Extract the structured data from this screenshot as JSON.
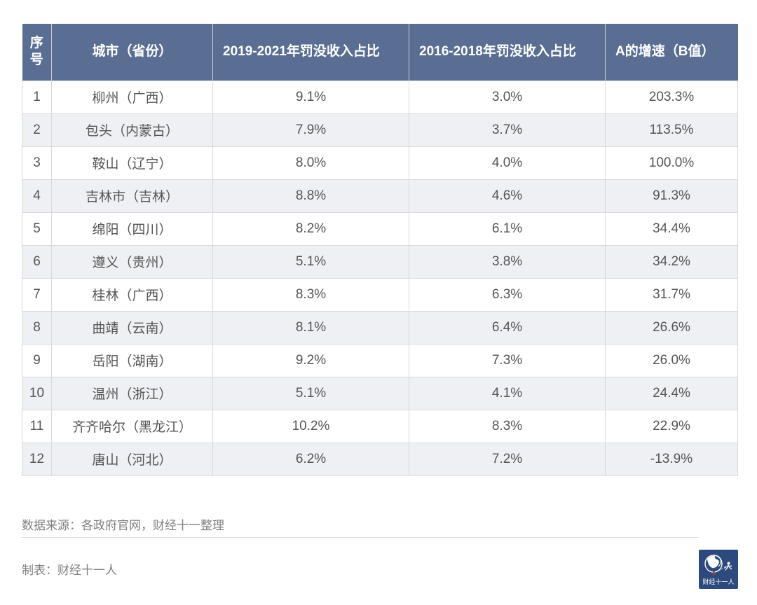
{
  "chart_data": {
    "type": "table",
    "title": "",
    "columns": [
      "序号",
      "城市（省份）",
      "2019-2021年罚没收入占比",
      "2016-2018年罚没收入占比",
      "A的增速（B值）"
    ],
    "rows": [
      [
        "1",
        "柳州（广西）",
        "9.1%",
        "3.0%",
        "203.3%"
      ],
      [
        "2",
        "包头（内蒙古）",
        "7.9%",
        "3.7%",
        "113.5%"
      ],
      [
        "3",
        "鞍山（辽宁）",
        "8.0%",
        "4.0%",
        "100.0%"
      ],
      [
        "4",
        "吉林市（吉林）",
        "8.8%",
        "4.6%",
        "91.3%"
      ],
      [
        "5",
        "绵阳（四川）",
        "8.2%",
        "6.1%",
        "34.4%"
      ],
      [
        "6",
        "遵义（贵州）",
        "5.1%",
        "3.8%",
        "34.2%"
      ],
      [
        "7",
        "桂林（广西）",
        "8.3%",
        "6.3%",
        "31.7%"
      ],
      [
        "8",
        "曲靖（云南）",
        "8.1%",
        "6.4%",
        "26.6%"
      ],
      [
        "9",
        "岳阳（湖南）",
        "9.2%",
        "7.3%",
        "26.0%"
      ],
      [
        "10",
        "温州（浙江）",
        "5.1%",
        "4.1%",
        "24.4%"
      ],
      [
        "11",
        "齐齐哈尔（黑龙江）",
        "10.2%",
        "8.3%",
        "22.9%"
      ],
      [
        "12",
        "唐山（河北）",
        "6.2%",
        "7.2%",
        "-13.9%"
      ]
    ]
  },
  "footer": {
    "source": "数据来源：各政府官网，财经十一整理",
    "credit": "制表：财经十一人",
    "logo_text": "财经十一人"
  },
  "colors": {
    "header_bg": "#5a6e94",
    "header_text": "#ffffff",
    "body_text": "#555555",
    "row_alt_bg": "#eef0f3",
    "border": "#d9d9d9",
    "footer_text": "#7f7f7f",
    "logo_bg": "#2c4a7d",
    "logo_accent": "#c23531"
  }
}
